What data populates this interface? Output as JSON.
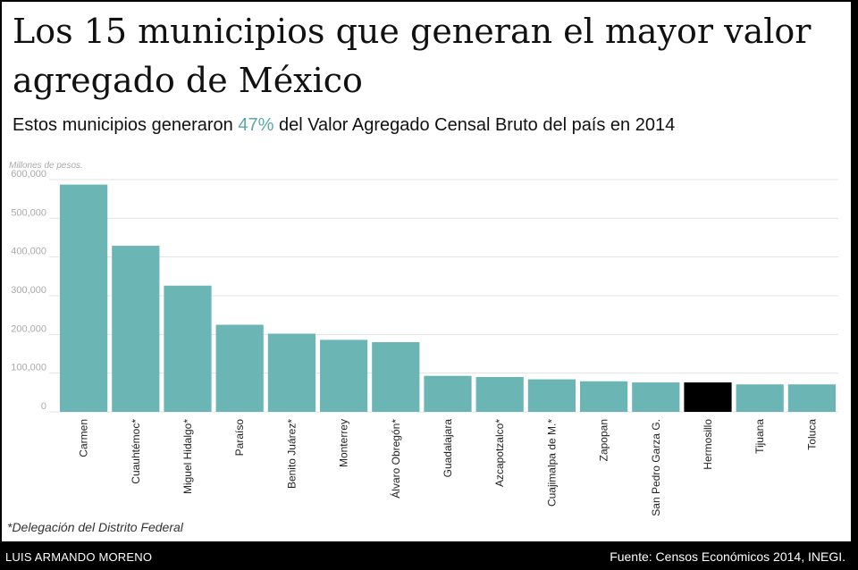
{
  "header": {
    "title": "Los 15 municipios que generan el mayor valor agregado de México",
    "subtitle_before": "Estos municipios generaron ",
    "subtitle_highlight": "47%",
    "subtitle_after": " del Valor Agregado Censal Bruto del país en 2014"
  },
  "chart_data": {
    "type": "bar",
    "title": "Los 15 municipios que generan el mayor valor agregado de México",
    "ylabel": "Millones de pesos.",
    "xlabel": "",
    "ylim": [
      0,
      600000
    ],
    "yticks": [
      0,
      100000,
      200000,
      300000,
      400000,
      500000,
      600000
    ],
    "ytick_labels": [
      "0",
      "100,000",
      "200,000",
      "300,000",
      "400,000",
      "500,000",
      "600,000"
    ],
    "grid": true,
    "categories": [
      "Carmen",
      "Cuauhtémoc*",
      "Miguel Hidalgo*",
      "Paraíso",
      "Benito Juárez*",
      "Monterrey",
      "Álvaro Obregón*",
      "Guadalajara",
      "Azcapotzalco*",
      "Cuajimalpa de M.*",
      "Zapopan",
      "San Pedro Garza G.",
      "Hermosillo",
      "Tijuana",
      "Toluca"
    ],
    "values": [
      587000,
      429000,
      326000,
      225000,
      202000,
      186000,
      180000,
      93000,
      90000,
      84000,
      79000,
      76000,
      76000,
      71000,
      71000
    ],
    "highlight": "Hermosillo",
    "colors": {
      "bar": "#6bb5b5",
      "highlight": "#000000",
      "grid": "#e3e3e3",
      "axis_text": "#aaaaaa"
    }
  },
  "footnote": "*Delegación del Distrito Federal",
  "footer": {
    "author": "LUIS ARMANDO MORENO",
    "source": "Fuente:  Censos Económicos 2014, INEGI."
  }
}
